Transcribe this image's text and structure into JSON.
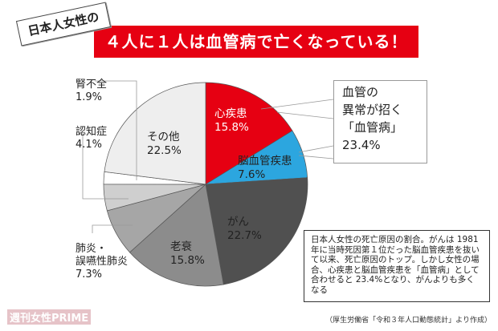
{
  "header": {
    "tag": "日本人女性の",
    "headline": "４人に１人は血管病で亡くなっている！"
  },
  "chart_data": {
    "type": "pie",
    "start": "top",
    "direction": "clockwise",
    "slices": [
      {
        "label": "心疾患",
        "value": 15.8,
        "display": "15.8%",
        "color": "#e60012"
      },
      {
        "label": "脳血管疾患",
        "value": 7.6,
        "display": "7.6%",
        "color": "#2ca6df"
      },
      {
        "label": "がん",
        "value": 22.7,
        "display": "22.7%",
        "color": "#505050"
      },
      {
        "label": "老衰",
        "value": 15.8,
        "display": "15.8%",
        "color": "#8c8c8c"
      },
      {
        "label": "肺炎・\n誤嚥性肺炎",
        "value": 7.3,
        "display": "7.3%",
        "color": "#a6a6a6"
      },
      {
        "label": "認知症",
        "value": 4.1,
        "display": "4.1%",
        "color": "#cfcfcf"
      },
      {
        "label": "腎不全",
        "value": 1.9,
        "display": "1.9%",
        "color": "#ffffff"
      },
      {
        "label": "その他",
        "value": 22.5,
        "display": "22.5%",
        "color": "#eeeeee"
      }
    ]
  },
  "callout": {
    "line1": "血管の",
    "line2": "異常が招く",
    "line3": "「血管病」",
    "value": "23.4%"
  },
  "description": "日本人女性の死亡原因の割合。がんは 1981 年に当時死因第１位だった脳血管疾患を抜いて以来、死亡原因のトップ。しかし女性の場合、心疾患と脳血管疾患を「血管病」として合わせると 23.4%となり、がんよりも多くなる",
  "source": "（厚生労働省「令和３年人口動態統計」より作成）",
  "logo": "週刊女性PRIME"
}
